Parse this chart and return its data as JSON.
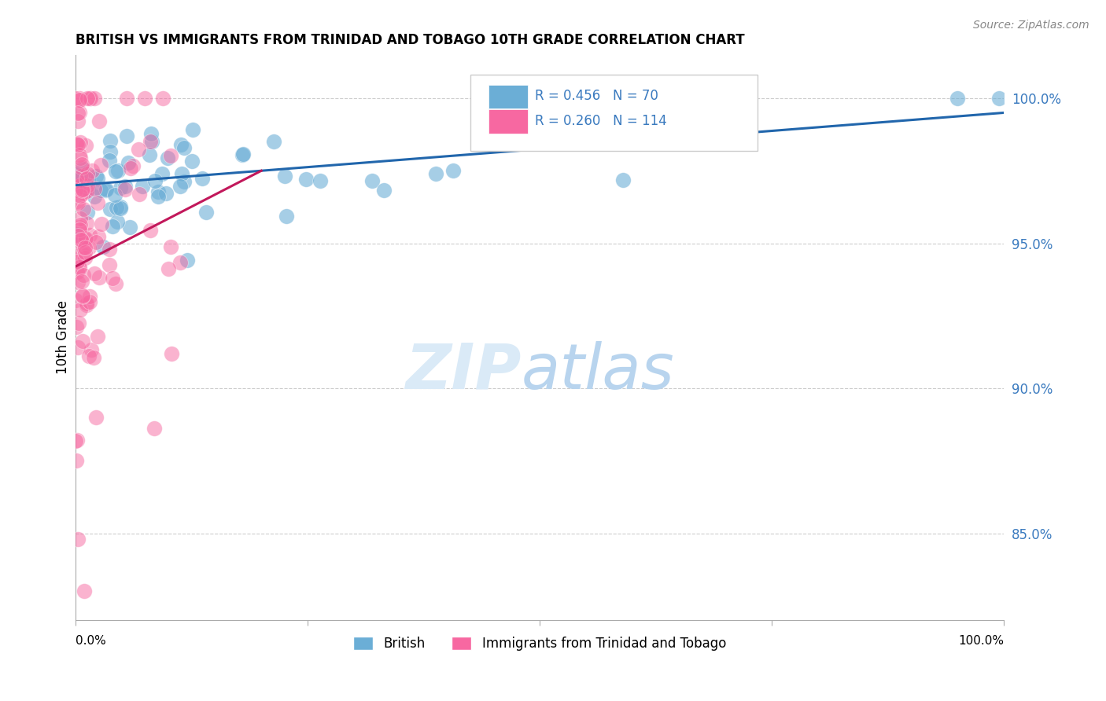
{
  "title": "BRITISH VS IMMIGRANTS FROM TRINIDAD AND TOBAGO 10TH GRADE CORRELATION CHART",
  "source": "Source: ZipAtlas.com",
  "ylabel": "10th Grade",
  "legend_entry1": "R = 0.456   N = 70",
  "legend_entry2": "R = 0.260   N = 114",
  "legend_label1": "British",
  "legend_label2": "Immigrants from Trinidad and Tobago",
  "blue_color": "#6baed6",
  "pink_color": "#f768a1",
  "blue_line_color": "#2166ac",
  "pink_line_color": "#c2185b",
  "xmin": 0.0,
  "xmax": 100.0,
  "ymin": 82.0,
  "ymax": 101.5,
  "right_yticks": [
    85.0,
    90.0,
    95.0,
    100.0
  ],
  "right_ytick_labels": [
    "85.0%",
    "90.0%",
    "95.0%",
    "100.0%"
  ]
}
